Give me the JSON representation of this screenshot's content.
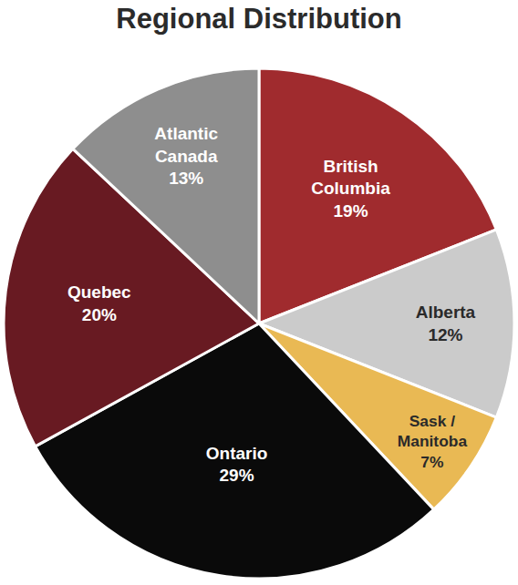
{
  "chart_data": {
    "type": "pie",
    "title": "Regional Distribution",
    "categories": [
      "British Columbia",
      "Alberta",
      "Sask / Manitoba",
      "Ontario",
      "Quebec",
      "Atlantic Canada"
    ],
    "values": [
      19,
      12,
      7,
      29,
      20,
      13
    ],
    "value_labels": [
      "19%",
      "12%",
      "7%",
      "29%",
      "20%",
      "13%"
    ],
    "colors": [
      "#a02b2e",
      "#cbcbcb",
      "#e9b954",
      "#0a0a0a",
      "#681a22",
      "#8e8e8e"
    ],
    "data_labels": true
  }
}
